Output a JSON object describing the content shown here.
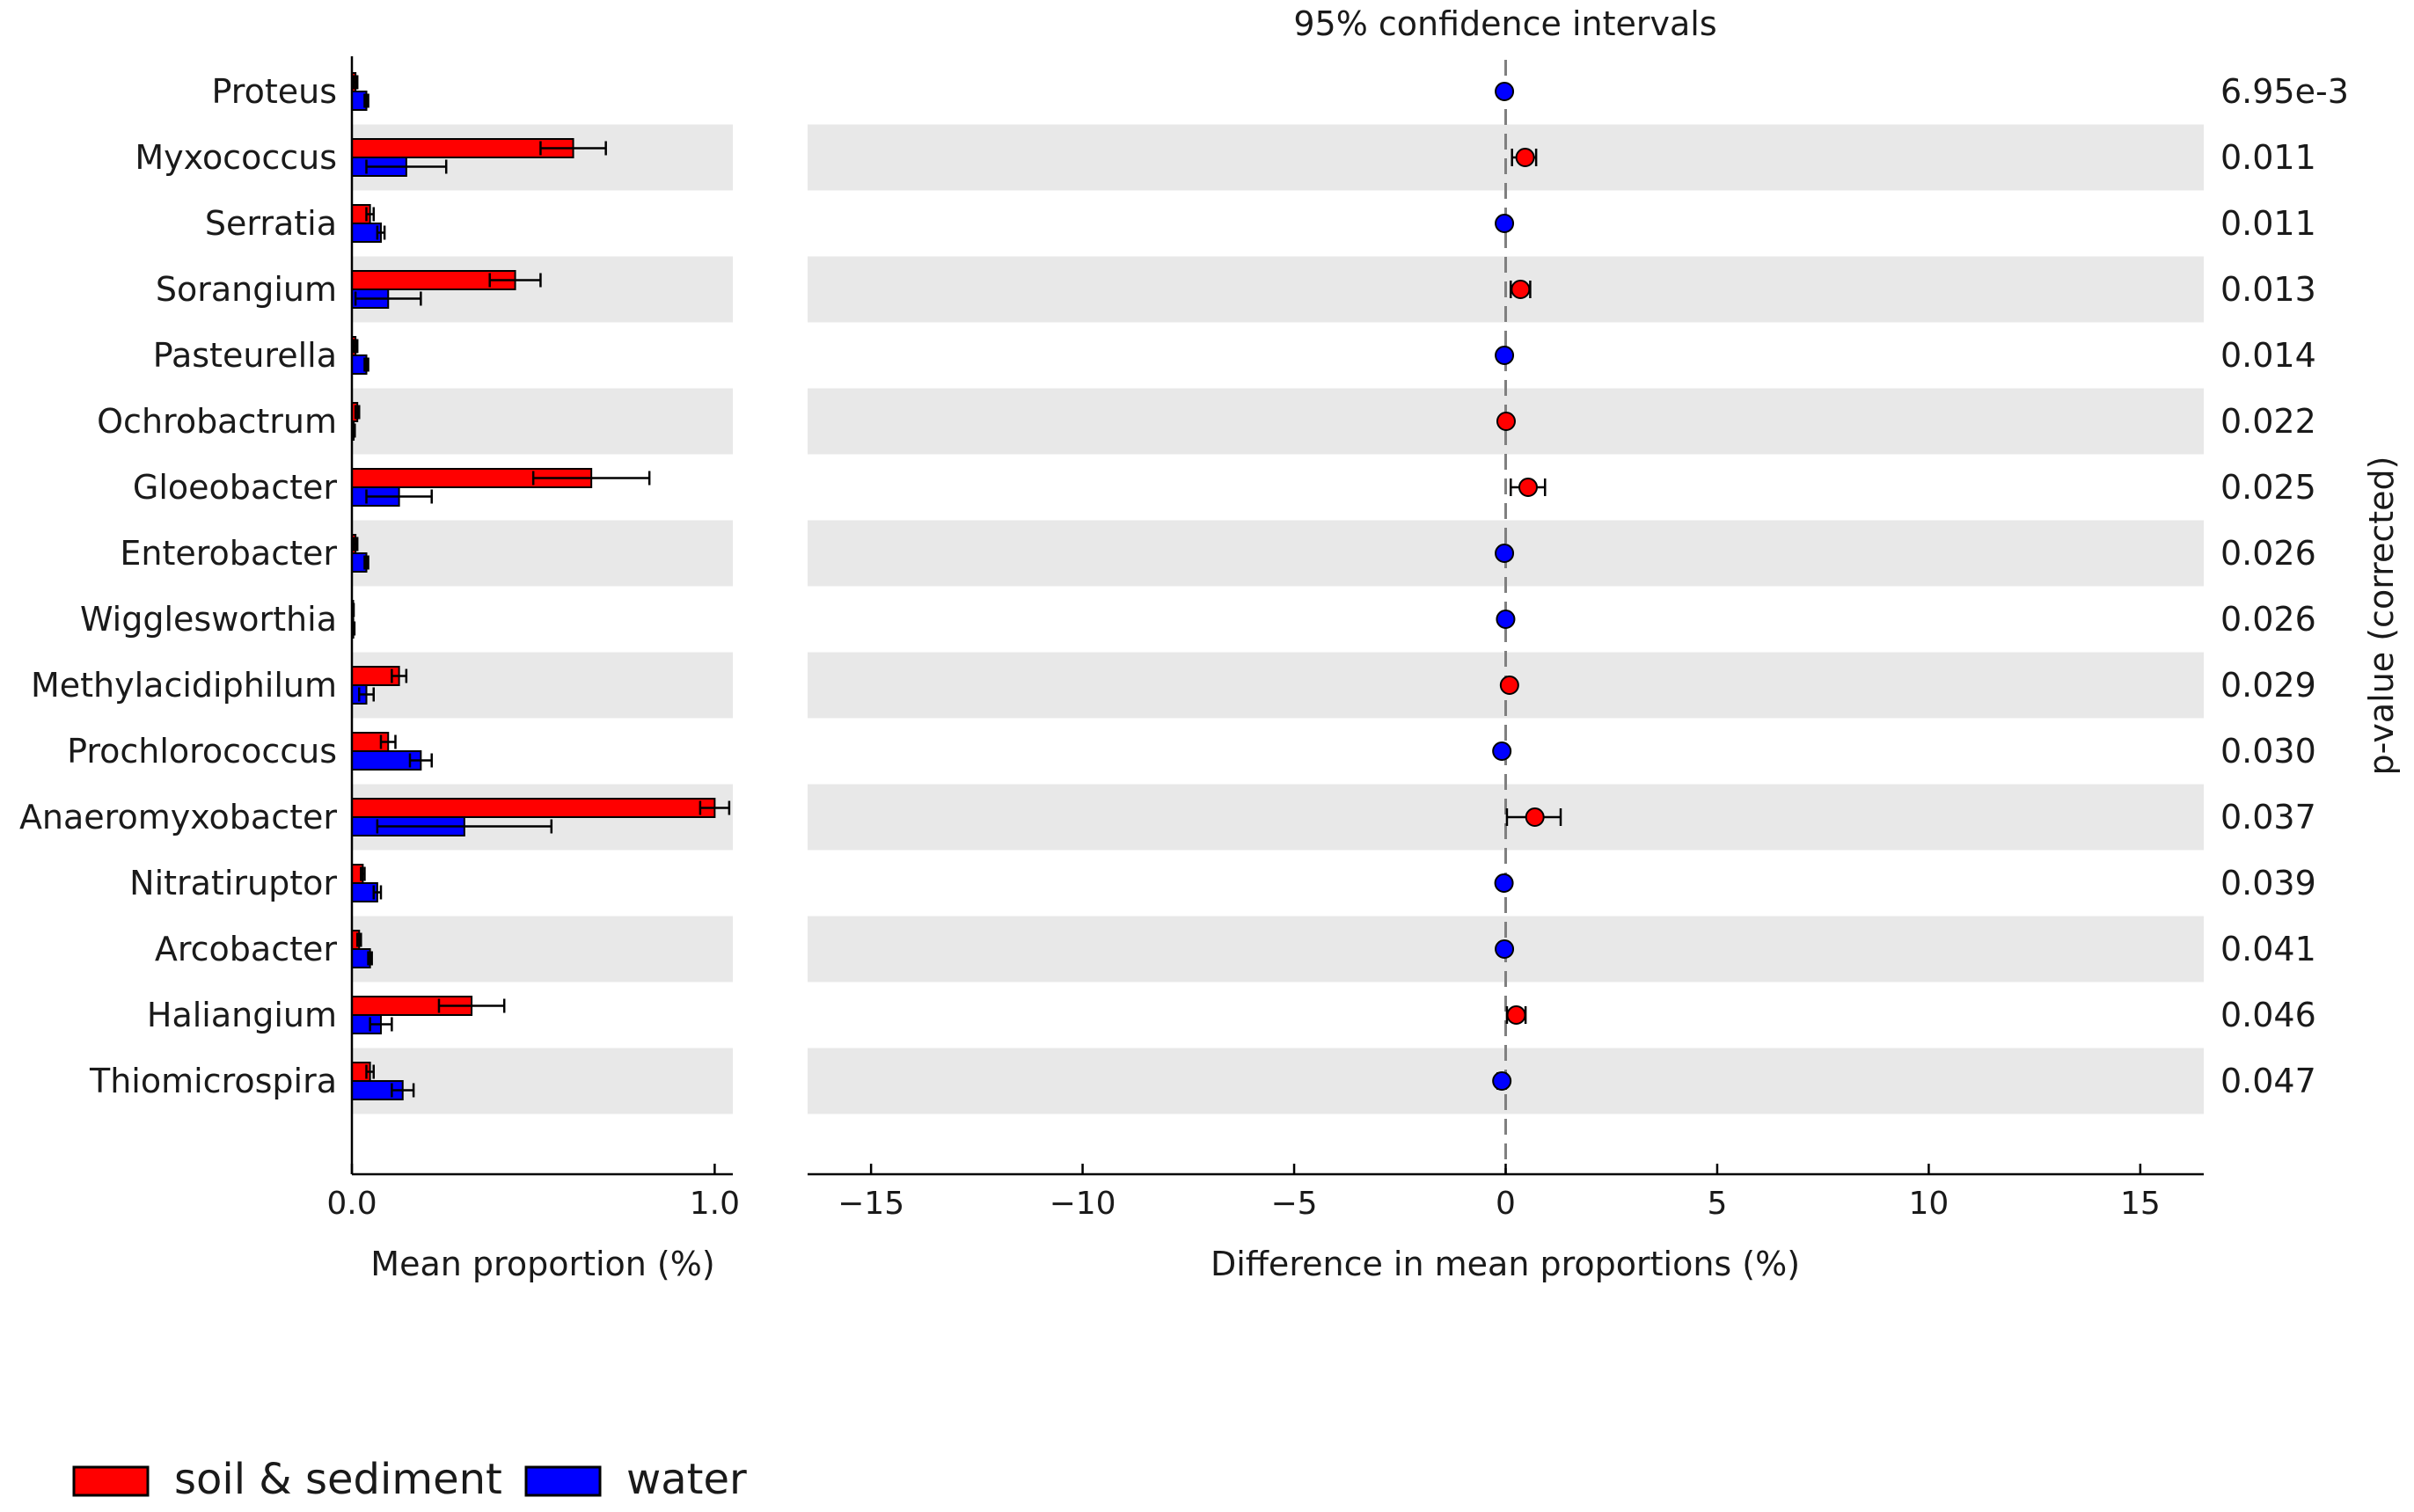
{
  "chart_data": {
    "type": "bar",
    "title": "95% confidence intervals",
    "categories": [
      "Proteus",
      "Myxococcus",
      "Serratia",
      "Sorangium",
      "Pasteurella",
      "Ochrobactrum",
      "Gloeobacter",
      "Enterobacter",
      "Wigglesworthia",
      "Methylacidiphilum",
      "Prochlorococcus",
      "Anaeromyxobacter",
      "Nitratiruptor",
      "Arcobacter",
      "Haliangium",
      "Thiomicrospira"
    ],
    "left_panel": {
      "xlabel": "Mean proportion (%)",
      "xlim": [
        0,
        1.05
      ],
      "xticks": [
        0.0,
        1.0
      ],
      "xtick_labels": [
        "0.0",
        "1.0"
      ],
      "series": [
        {
          "name": "soil & sediment",
          "color": "#ff0000",
          "values": [
            0.01,
            0.61,
            0.05,
            0.45,
            0.01,
            0.015,
            0.66,
            0.01,
            0.003,
            0.13,
            0.1,
            1.0,
            0.03,
            0.02,
            0.33,
            0.05
          ],
          "err": [
            0.005,
            0.09,
            0.01,
            0.07,
            0.005,
            0.005,
            0.16,
            0.005,
            0.002,
            0.02,
            0.02,
            0.04,
            0.005,
            0.005,
            0.09,
            0.01
          ]
        },
        {
          "name": "water",
          "color": "#0000ff",
          "values": [
            0.04,
            0.15,
            0.08,
            0.1,
            0.04,
            0.005,
            0.13,
            0.04,
            0.004,
            0.04,
            0.19,
            0.31,
            0.07,
            0.05,
            0.08,
            0.14
          ],
          "err": [
            0.005,
            0.11,
            0.01,
            0.09,
            0.005,
            0.003,
            0.09,
            0.005,
            0.003,
            0.02,
            0.03,
            0.24,
            0.01,
            0.005,
            0.03,
            0.03
          ]
        }
      ]
    },
    "right_panel": {
      "xlabel": "Difference in mean proportions (%)",
      "xlim": [
        -16.5,
        16.5
      ],
      "xticks": [
        -15,
        -10,
        -5,
        0,
        5,
        10,
        15
      ],
      "xtick_labels": [
        "−15",
        "−10",
        "−5",
        "0",
        "5",
        "10",
        "15"
      ],
      "diff": [
        -0.03,
        0.46,
        -0.03,
        0.35,
        -0.03,
        0.01,
        0.53,
        -0.03,
        -0.001,
        0.09,
        -0.09,
        0.69,
        -0.04,
        -0.03,
        0.25,
        -0.09
      ],
      "ci_low": [
        -0.03,
        0.15,
        -0.05,
        0.12,
        -0.03,
        0.0,
        0.12,
        -0.04,
        -0.004,
        0.05,
        -0.15,
        0.03,
        -0.06,
        -0.04,
        0.03,
        -0.19
      ],
      "ci_high": [
        -0.03,
        0.72,
        -0.01,
        0.58,
        -0.03,
        0.02,
        0.93,
        -0.02,
        0.002,
        0.13,
        -0.03,
        1.3,
        -0.02,
        -0.02,
        0.47,
        0.0
      ],
      "point_colors": [
        "#0000ff",
        "#ff0000",
        "#0000ff",
        "#ff0000",
        "#0000ff",
        "#ff0000",
        "#ff0000",
        "#0000ff",
        "#0000ff",
        "#ff0000",
        "#0000ff",
        "#ff0000",
        "#0000ff",
        "#0000ff",
        "#ff0000",
        "#0000ff"
      ]
    },
    "p_values": [
      "6.95e-3",
      "0.011",
      "0.011",
      "0.013",
      "0.014",
      "0.022",
      "0.025",
      "0.026",
      "0.026",
      "0.029",
      "0.030",
      "0.037",
      "0.039",
      "0.041",
      "0.046",
      "0.047"
    ],
    "p_label": "p-value (corrected)",
    "legend": [
      {
        "label": "soil & sediment",
        "color": "#ff0000"
      },
      {
        "label": "water",
        "color": "#0000ff"
      }
    ],
    "legend_position": "bottom-left",
    "row_shading": "alternate"
  }
}
